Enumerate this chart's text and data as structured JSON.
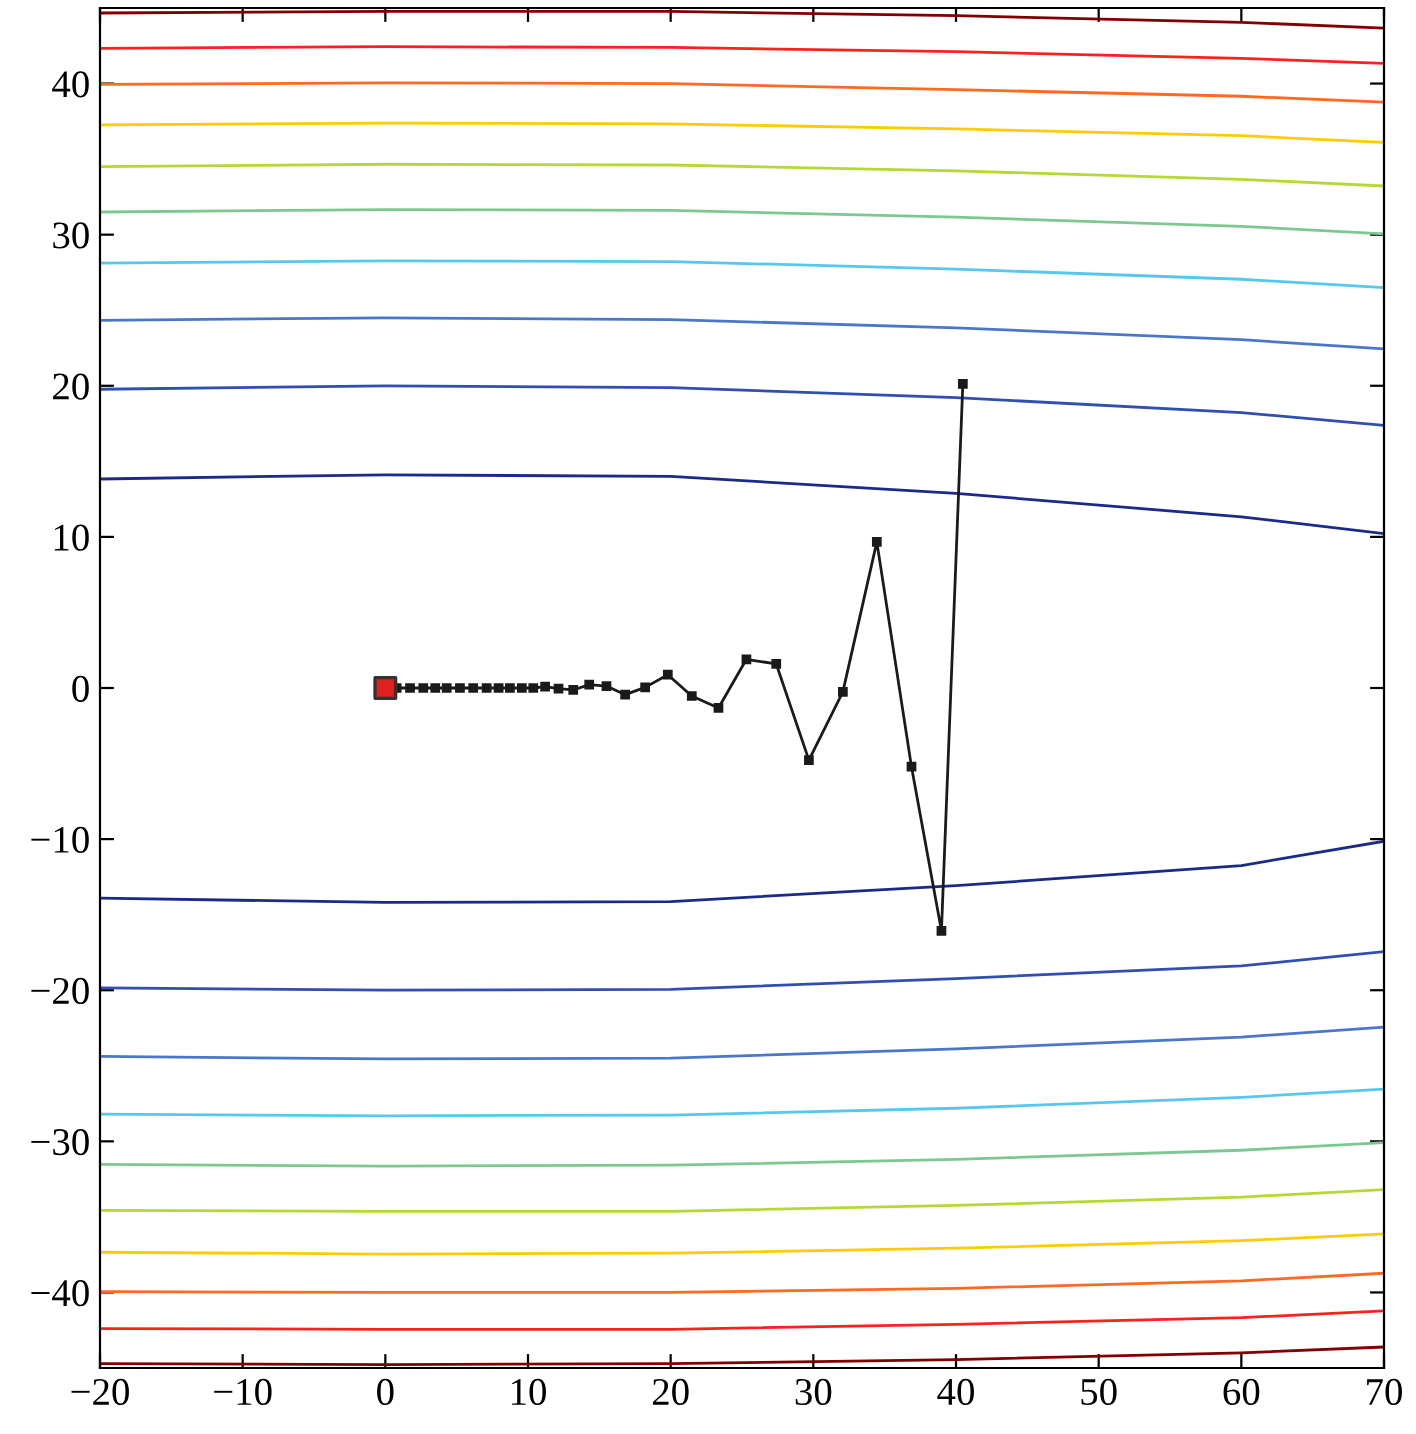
{
  "chart_data": {
    "type": "line",
    "xlim": [
      -20,
      70
    ],
    "ylim": [
      -45,
      45
    ],
    "xticks": [
      {
        "value": -20,
        "label": "−20"
      },
      {
        "value": -10,
        "label": "−10"
      },
      0,
      10,
      20,
      30,
      40,
      50,
      60,
      70
    ],
    "yticks": [
      {
        "value": -40,
        "label": "−40"
      },
      {
        "value": -30,
        "label": "−30"
      },
      {
        "value": -20,
        "label": "−20"
      },
      {
        "value": -10,
        "label": "−10"
      },
      0,
      10,
      20,
      30,
      40
    ],
    "grid": false,
    "legend": false,
    "series": [
      {
        "color": "#800000",
        "x": [
          -20,
          0,
          20,
          40,
          60,
          70
        ],
        "values": [
          44.67,
          44.77,
          44.77,
          44.49,
          44.05,
          43.67
        ]
      },
      {
        "color": "#ff2020",
        "x": [
          -20,
          0,
          20,
          40,
          60,
          70
        ],
        "values": [
          42.33,
          42.44,
          42.39,
          42.11,
          41.67,
          41.33
        ]
      },
      {
        "color": "#ff6a20",
        "x": [
          -20,
          0,
          20,
          40,
          60,
          70
        ],
        "values": [
          39.94,
          40.05,
          39.99,
          39.6,
          39.16,
          38.77
        ]
      },
      {
        "color": "#ffcc00",
        "x": [
          -20,
          0,
          20,
          40,
          60,
          70
        ],
        "values": [
          37.27,
          37.38,
          37.33,
          37.0,
          36.55,
          36.11
        ]
      },
      {
        "color": "#b5d934",
        "x": [
          -20,
          0,
          20,
          40,
          60,
          70
        ],
        "values": [
          34.5,
          34.66,
          34.61,
          34.22,
          33.66,
          33.22
        ]
      },
      {
        "color": "#7cc98f",
        "x": [
          -20,
          0,
          20,
          40,
          60,
          70
        ],
        "values": [
          31.5,
          31.66,
          31.61,
          31.16,
          30.55,
          30.05
        ]
      },
      {
        "color": "#55c8f0",
        "x": [
          -20,
          0,
          20,
          40,
          60,
          70
        ],
        "values": [
          28.11,
          28.27,
          28.22,
          27.72,
          27.05,
          26.5
        ]
      },
      {
        "color": "#4a78c8",
        "x": [
          -20,
          0,
          20,
          40,
          60,
          70
        ],
        "values": [
          24.33,
          24.5,
          24.38,
          23.83,
          23.05,
          22.44
        ]
      },
      {
        "color": "#3050b0",
        "x": [
          -20,
          0,
          20,
          40,
          60,
          70
        ],
        "values": [
          19.77,
          20.0,
          19.88,
          19.22,
          18.22,
          17.38
        ]
      },
      {
        "color": "#1a2a8a",
        "x": [
          -20,
          0,
          20,
          40,
          60,
          70
        ],
        "values": [
          13.83,
          14.11,
          14.0,
          12.88,
          11.33,
          10.22
        ]
      },
      {
        "color": "#1a2a8a",
        "x": [
          -20,
          0,
          20,
          40,
          60,
          70
        ],
        "values": [
          -13.91,
          -14.19,
          -14.13,
          -13.08,
          -11.75,
          -10.14
        ]
      },
      {
        "color": "#3050b0",
        "x": [
          -20,
          0,
          20,
          40,
          60,
          70
        ],
        "values": [
          -19.84,
          -20.0,
          -19.95,
          -19.23,
          -18.39,
          -17.45
        ]
      },
      {
        "color": "#4a78c8",
        "x": [
          -20,
          0,
          20,
          40,
          60,
          70
        ],
        "values": [
          -24.38,
          -24.55,
          -24.49,
          -23.88,
          -23.1,
          -22.44
        ]
      },
      {
        "color": "#55c8f0",
        "x": [
          -20,
          0,
          20,
          40,
          60,
          70
        ],
        "values": [
          -28.2,
          -28.31,
          -28.26,
          -27.81,
          -27.09,
          -26.54
        ]
      },
      {
        "color": "#7cc98f",
        "x": [
          -20,
          0,
          20,
          40,
          60,
          70
        ],
        "values": [
          -31.53,
          -31.64,
          -31.58,
          -31.19,
          -30.59,
          -30.09
        ]
      },
      {
        "color": "#b5d934",
        "x": [
          -20,
          0,
          20,
          40,
          60,
          70
        ],
        "values": [
          -34.57,
          -34.63,
          -34.63,
          -34.24,
          -33.69,
          -33.19
        ]
      },
      {
        "color": "#ffcc00",
        "x": [
          -20,
          0,
          20,
          40,
          60,
          70
        ],
        "values": [
          -37.34,
          -37.46,
          -37.4,
          -37.07,
          -36.57,
          -36.13
        ]
      },
      {
        "color": "#ff6a20",
        "x": [
          -20,
          0,
          20,
          40,
          60,
          70
        ],
        "values": [
          -39.95,
          -40.0,
          -40.0,
          -39.73,
          -39.23,
          -38.73
        ]
      },
      {
        "color": "#ff2020",
        "x": [
          -20,
          0,
          20,
          40,
          60,
          70
        ],
        "values": [
          -42.39,
          -42.44,
          -42.44,
          -42.11,
          -41.67,
          -41.22
        ]
      },
      {
        "color": "#800000",
        "x": [
          -20,
          0,
          20,
          40,
          60,
          70
        ],
        "values": [
          -44.71,
          -44.77,
          -44.71,
          -44.44,
          -44.0,
          -43.61
        ]
      },
      {
        "color": "#1a1a1a",
        "marker": "square",
        "x": [
          0,
          0.79,
          1.73,
          2.66,
          3.5,
          4.3,
          5.23,
          6.16,
          7.1,
          7.94,
          8.73,
          9.57,
          10.37,
          11.2,
          12.14,
          13.17,
          14.29,
          15.5,
          16.81,
          18.21,
          19.8,
          21.48,
          23.35,
          25.31,
          27.4,
          29.69,
          32.07,
          34.45,
          36.88,
          38.98,
          40.48
        ],
        "values": [
          0,
          0,
          0,
          0,
          0,
          0,
          0,
          0,
          0,
          0,
          0,
          0,
          0,
          0.09,
          -0.04,
          -0.13,
          0.22,
          0.13,
          -0.44,
          0.04,
          0.88,
          -0.53,
          -1.32,
          1.9,
          1.59,
          -4.77,
          -0.26,
          9.67,
          -5.21,
          -16.07,
          20.13
        ]
      },
      {
        "type": "scatter",
        "marker": "square",
        "color": "#e02020",
        "x": [
          0
        ],
        "values": [
          0
        ]
      }
    ]
  }
}
